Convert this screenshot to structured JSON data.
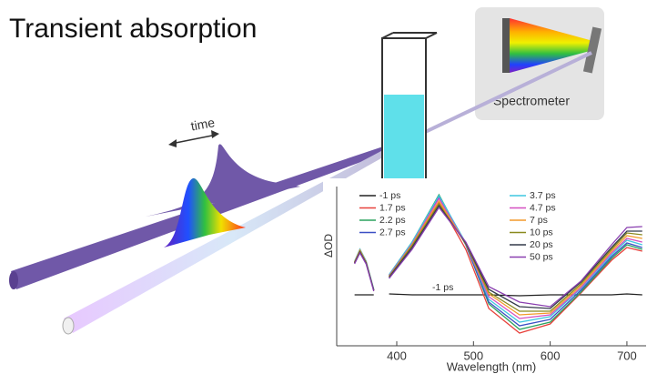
{
  "title": "Transient absorption",
  "labels": {
    "time": "time",
    "spectrometer": "Spectrometer"
  },
  "chart_data": {
    "type": "line",
    "x_label": "Wavelength (nm)",
    "y_label": "ΔOD",
    "annotation": "-1 ps",
    "x": [
      345,
      352,
      360,
      370,
      380,
      390,
      420,
      455,
      490,
      520,
      560,
      600,
      640,
      680,
      700,
      720
    ],
    "xlim": [
      330,
      725
    ],
    "xticks": [
      400,
      500,
      600,
      700
    ],
    "ylim": [
      -0.56,
      1.24
    ],
    "series": [
      {
        "name": "-1 ps",
        "color": "#222222",
        "values": [
          0,
          0,
          0,
          0,
          null,
          0.01,
          0,
          0,
          0,
          0,
          -0.01,
          0,
          0,
          0,
          0.01,
          0
        ]
      },
      {
        "name": "1.7 ps",
        "color": "#e8413c",
        "values": [
          0.35,
          0.48,
          0.36,
          0.05,
          null,
          0.2,
          0.55,
          1.02,
          0.5,
          -0.15,
          -0.42,
          -0.32,
          0.02,
          0.38,
          0.52,
          0.48
        ]
      },
      {
        "name": "2.2 ps",
        "color": "#2ca25f",
        "values": [
          0.36,
          0.5,
          0.37,
          0.06,
          null,
          0.22,
          0.58,
          1.1,
          0.55,
          -0.1,
          -0.38,
          -0.3,
          0.03,
          0.4,
          0.55,
          0.5
        ]
      },
      {
        "name": "2.7 ps",
        "color": "#3b4fc4",
        "values": [
          0.36,
          0.49,
          0.36,
          0.05,
          null,
          0.21,
          0.57,
          1.08,
          0.55,
          -0.08,
          -0.34,
          -0.27,
          0.05,
          0.42,
          0.57,
          0.52
        ]
      },
      {
        "name": "3.7 ps",
        "color": "#3fc7e0",
        "values": [
          0.37,
          0.5,
          0.37,
          0.06,
          null,
          0.22,
          0.58,
          1.09,
          0.57,
          -0.05,
          -0.3,
          -0.24,
          0.07,
          0.44,
          0.6,
          0.55
        ]
      },
      {
        "name": "4.7 ps",
        "color": "#d44fc0",
        "values": [
          0.36,
          0.49,
          0.36,
          0.05,
          null,
          0.21,
          0.56,
          1.06,
          0.56,
          -0.02,
          -0.26,
          -0.22,
          0.08,
          0.46,
          0.62,
          0.58
        ]
      },
      {
        "name": "7 ps",
        "color": "#f39a2b",
        "values": [
          0.36,
          0.49,
          0.36,
          0.05,
          null,
          0.2,
          0.55,
          1.03,
          0.56,
          0.01,
          -0.22,
          -0.2,
          0.1,
          0.48,
          0.65,
          0.62
        ]
      },
      {
        "name": "10 ps",
        "color": "#8a8a1e",
        "values": [
          0.35,
          0.48,
          0.35,
          0.05,
          null,
          0.2,
          0.54,
          1.0,
          0.56,
          0.03,
          -0.18,
          -0.18,
          0.12,
          0.5,
          0.68,
          0.66
        ]
      },
      {
        "name": "20 ps",
        "color": "#333a4a",
        "values": [
          0.35,
          0.47,
          0.35,
          0.05,
          null,
          0.19,
          0.52,
          0.98,
          0.57,
          0.06,
          -0.13,
          -0.15,
          0.14,
          0.52,
          0.7,
          0.7
        ]
      },
      {
        "name": "50 ps",
        "color": "#8a3fb0",
        "values": [
          0.34,
          0.46,
          0.34,
          0.04,
          null,
          0.18,
          0.5,
          0.96,
          0.58,
          0.09,
          -0.08,
          -0.13,
          0.15,
          0.55,
          0.74,
          0.75
        ]
      }
    ]
  }
}
